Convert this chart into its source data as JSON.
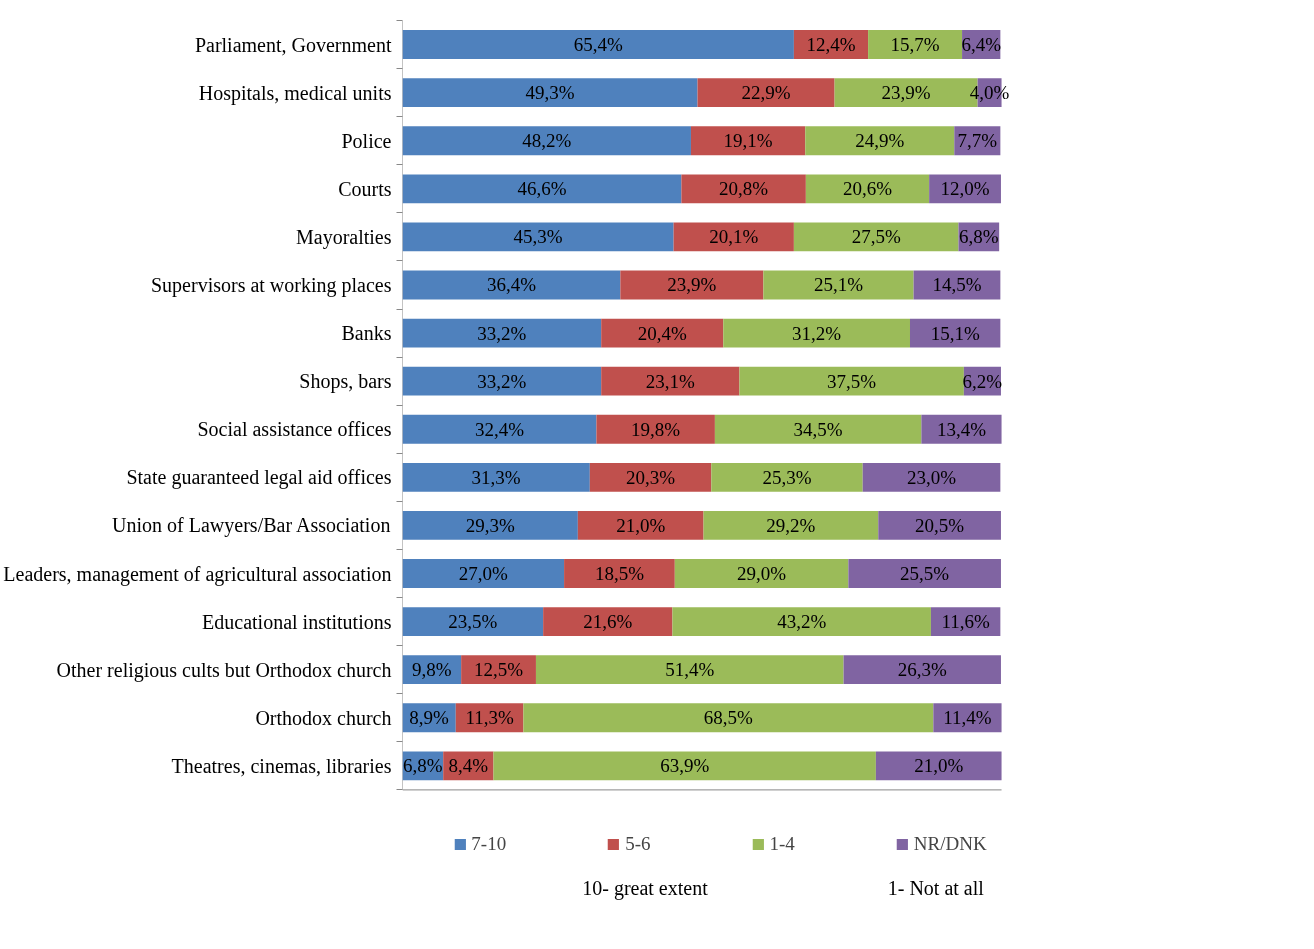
{
  "chart_data": {
    "type": "bar",
    "orientation": "horizontal",
    "stacked": true,
    "grid": false,
    "legend": "bottom",
    "categories": [
      "Parliament, Government",
      "Hospitals, medical units",
      "Police",
      "Courts",
      "Mayoralties",
      "Supervisors at working places",
      "Banks",
      "Shops, bars",
      "Social assistance offices",
      "State guaranteed legal aid offices",
      "Union of Lawyers/Bar Association",
      "Leaders, management of agricultural association",
      "Educational institutions",
      "Other religious cults but Orthodox church",
      "Orthodox church",
      "Theatres, cinemas, libraries"
    ],
    "series": [
      {
        "name": "7-10",
        "color": "#4f81bd",
        "values": [
          65.4,
          49.3,
          48.2,
          46.6,
          45.3,
          36.4,
          33.2,
          33.2,
          32.4,
          31.3,
          29.3,
          27.0,
          23.5,
          9.8,
          8.9,
          6.8
        ],
        "value_labels": [
          "65,4%",
          "49,3%",
          "48,2%",
          "46,6%",
          "45,3%",
          "36,4%",
          "33,2%",
          "33,2%",
          "32,4%",
          "31,3%",
          "29,3%",
          "27,0%",
          "23,5%",
          "9,8%",
          "8,9%",
          "6,8%"
        ]
      },
      {
        "name": "5-6",
        "color": "#c0504d",
        "values": [
          12.4,
          22.9,
          19.1,
          20.8,
          20.1,
          23.9,
          20.4,
          23.1,
          19.8,
          20.3,
          21.0,
          18.5,
          21.6,
          12.5,
          11.3,
          8.4
        ],
        "value_labels": [
          "12,4%",
          "22,9%",
          "19,1%",
          "20,8%",
          "20,1%",
          "23,9%",
          "20,4%",
          "23,1%",
          "19,8%",
          "20,3%",
          "21,0%",
          "18,5%",
          "21,6%",
          "12,5%",
          "11,3%",
          "8,4%"
        ]
      },
      {
        "name": "1-4",
        "color": "#9bbb59",
        "values": [
          15.7,
          23.9,
          24.9,
          20.6,
          27.5,
          25.1,
          31.2,
          37.5,
          34.5,
          25.3,
          29.2,
          29.0,
          43.2,
          51.4,
          68.5,
          63.9
        ],
        "value_labels": [
          "15,7%",
          "23,9%",
          "24,9%",
          "20,6%",
          "27,5%",
          "25,1%",
          "31,2%",
          "37,5%",
          "34,5%",
          "25,3%",
          "29,2%",
          "29,0%",
          "43,2%",
          "51,4%",
          "68,5%",
          "63,9%"
        ]
      },
      {
        "name": "NR/DNK",
        "color": "#8064a2",
        "values": [
          6.4,
          4.0,
          7.7,
          12.0,
          6.8,
          14.5,
          15.1,
          6.2,
          13.4,
          23.0,
          20.5,
          25.5,
          11.6,
          26.3,
          11.4,
          21.0
        ],
        "value_labels": [
          "6,4%",
          "4,0%",
          "7,7%",
          "12,0%",
          "6,8%",
          "14,5%",
          "15,1%",
          "6,2%",
          "13,4%",
          "23,0%",
          "20,5%",
          "25,5%",
          "11,6%",
          "26,3%",
          "11,4%",
          "21,0%"
        ]
      }
    ],
    "annotations": [
      "10- great extent",
      "1- Not at all"
    ]
  }
}
